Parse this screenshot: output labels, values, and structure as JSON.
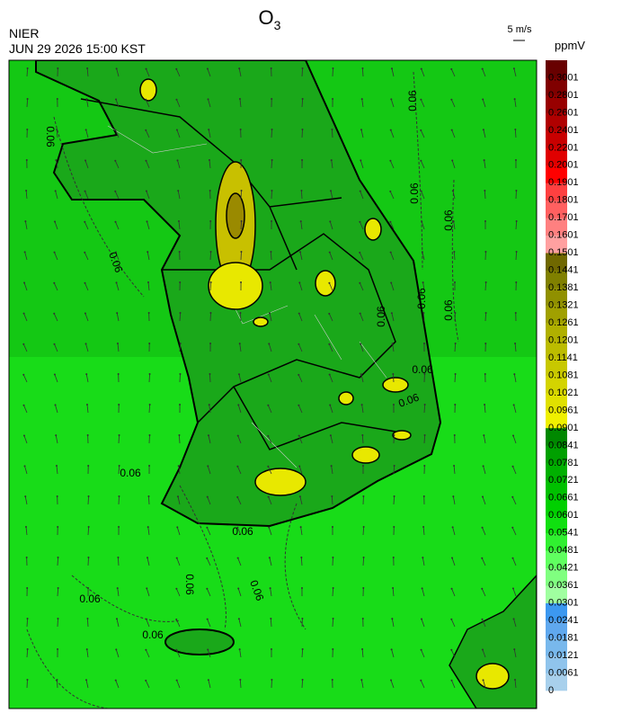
{
  "header": {
    "title": {
      "text": "O",
      "subscript": "3"
    },
    "agency": "NIER",
    "datetime": "JUN 29 2026 15:00 KST"
  },
  "wind_reference": "5 m/s",
  "contour_labels": [
    "0.06",
    "0.06",
    "0.06",
    "0.06",
    "0.06",
    "0.06",
    "0.06",
    "0.06",
    "0.06",
    "0.06",
    "0.06",
    "0.06",
    "0.06",
    "0.06",
    "0.06",
    "0.06"
  ],
  "colorbar": {
    "unit": "ppmV",
    "labels": [
      0,
      0.0061,
      0.0121,
      0.0181,
      0.0241,
      0.0301,
      0.0361,
      0.0421,
      0.0481,
      0.0541,
      0.0601,
      0.0661,
      0.0721,
      0.0781,
      0.0841,
      0.0901,
      0.0961,
      0.1021,
      0.1081,
      0.1141,
      0.1201,
      0.1261,
      0.1321,
      0.1381,
      0.1441,
      0.1501,
      0.1601,
      0.1701,
      0.1801,
      0.1901,
      0.2001,
      0.2201,
      0.2401,
      0.2601,
      0.2801,
      0.3001
    ],
    "colors": [
      "#a8d0ec",
      "#90c4ec",
      "#78b8ec",
      "#60a8ee",
      "#3c98f0",
      "#a0ffa0",
      "#80ff80",
      "#60ff60",
      "#30f030",
      "#10e010",
      "#00d000",
      "#00c000",
      "#00b000",
      "#00a000",
      "#008800",
      "#f0f000",
      "#e0e000",
      "#d4d400",
      "#c8c800",
      "#bcbc00",
      "#b0b000",
      "#a0a000",
      "#909000",
      "#808000",
      "#706800",
      "#ffa0a0",
      "#ff8080",
      "#ff6060",
      "#ff4040",
      "#ff0000",
      "#e00000",
      "#c80000",
      "#b00000",
      "#980000",
      "#800000",
      "#680000"
    ]
  }
}
